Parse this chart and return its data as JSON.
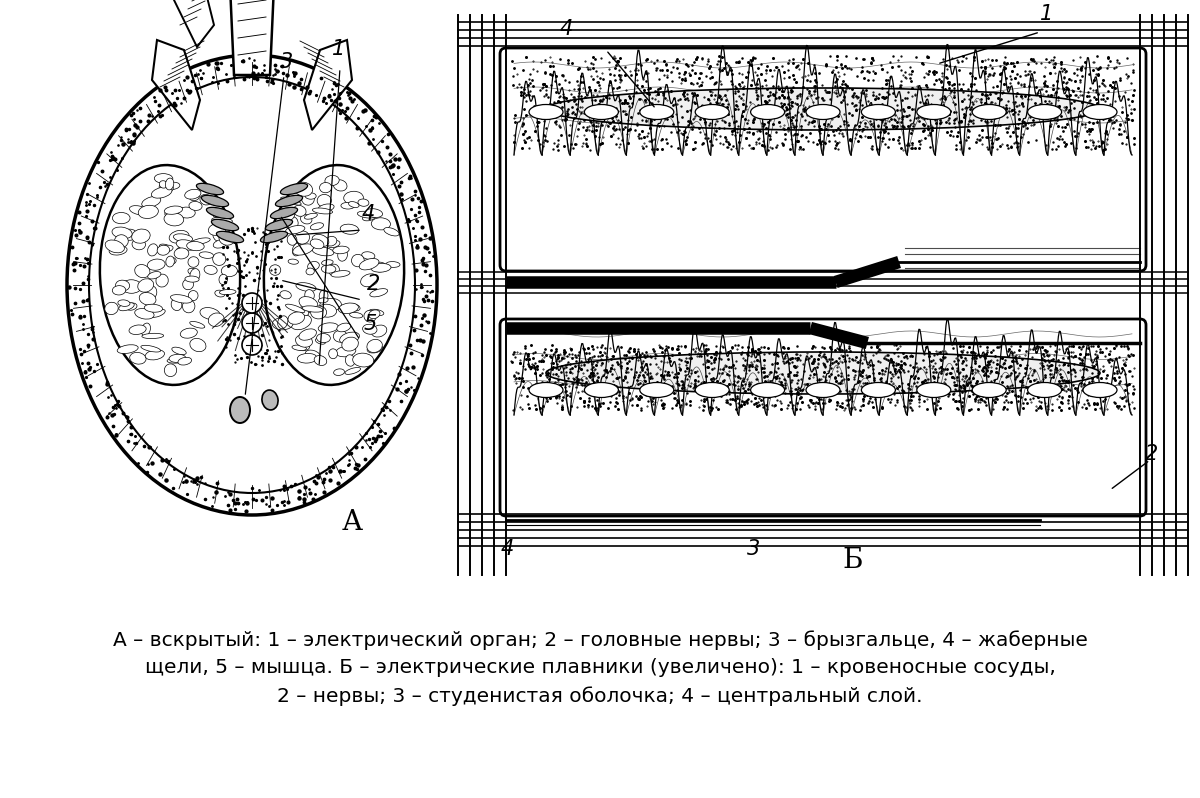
{
  "background_color": "#ffffff",
  "caption_line1": "А – вскрытый: 1 – электрический орган; 2 – головные нервы; 3 – брызгальце, 4 – жаберные",
  "caption_line2": "щели, 5 – мышца. Б – электрические плавники (увеличено): 1 – кровеносные сосуды,",
  "caption_line3": "2 – нервы; 3 – студенистая оболочка; 4 – центральный слой.",
  "fig_width": 12.0,
  "fig_height": 7.98
}
